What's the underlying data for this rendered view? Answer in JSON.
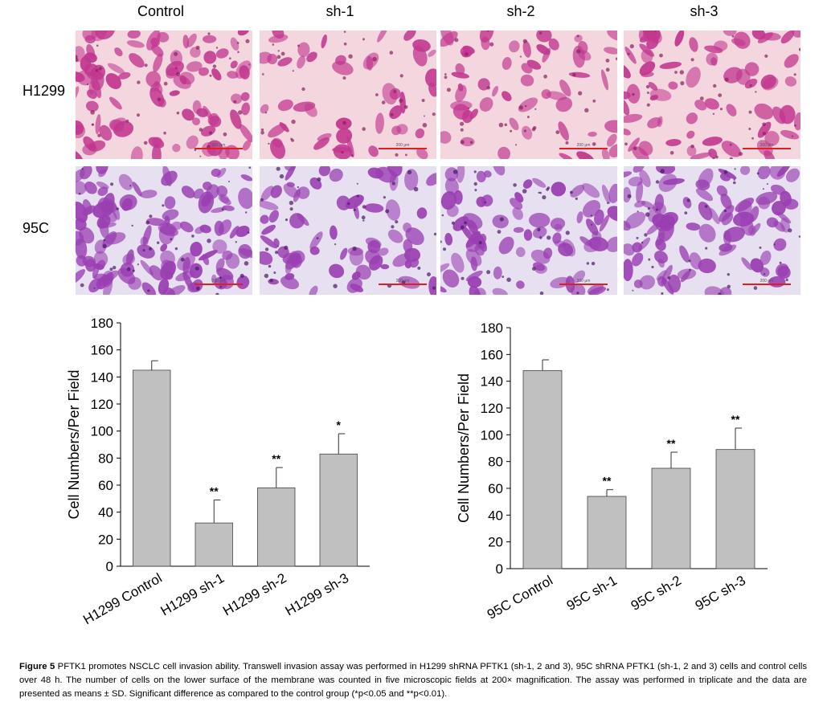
{
  "micrographs": {
    "columns": [
      "Control",
      "sh-1",
      "sh-2",
      "sh-3"
    ],
    "rows": [
      {
        "label": "H1299",
        "tone": "pink",
        "scale_label": "200 μm"
      },
      {
        "label": "95C",
        "tone": "purple",
        "scale_label": "200 μm"
      }
    ],
    "colors": {
      "pink_bg": "#f3d6de",
      "pink_cell": "#c2378f",
      "pink_dark": "#8a1f5e",
      "purple_bg": "#e6e0f0",
      "purple_cell": "#9a3fb2",
      "purple_dark": "#4a1866",
      "scale_bar": "#e0201e"
    }
  },
  "chart_data": [
    {
      "type": "bar",
      "categories": [
        "H1299 Control",
        "H1299 sh-1",
        "H1299 sh-2",
        "H1299 sh-3"
      ],
      "values": [
        145,
        32,
        58,
        83
      ],
      "errors": [
        7,
        17,
        15,
        15
      ],
      "significance": [
        "",
        "**",
        "**",
        "*"
      ],
      "ylabel": "Cell Numbers/Per Field",
      "ylim": [
        0,
        180
      ],
      "yticks": [
        0,
        20,
        40,
        60,
        80,
        100,
        120,
        140,
        160,
        180
      ],
      "bar_color": "#c0c0c0",
      "grid": false
    },
    {
      "type": "bar",
      "categories": [
        "95C Control",
        "95C sh-1",
        "95C sh-2",
        "95C sh-3"
      ],
      "values": [
        148,
        54,
        75,
        89
      ],
      "errors": [
        8,
        5,
        12,
        16
      ],
      "significance": [
        "",
        "**",
        "**",
        "**"
      ],
      "ylabel": "Cell Numbers/Per Field",
      "ylim": [
        0,
        180
      ],
      "yticks": [
        0,
        20,
        40,
        60,
        80,
        100,
        120,
        140,
        160,
        180
      ],
      "bar_color": "#c0c0c0",
      "grid": false
    }
  ],
  "caption": {
    "label": "Figure 5",
    "text": "PFTK1 promotes NSCLC cell invasion ability. Transwell invasion assay was performed in H1299 shRNA PFTK1 (sh-1, 2 and 3), 95C shRNA PFTK1 (sh-1, 2 and 3) cells and control cells over 48 h. The number of cells on the lower surface of the membrane was counted in five microscopic fields at 200× magnification. The assay was performed in triplicate and the data are presented as means ± SD. Significant difference as compared to the control group (*p<0.05 and **p<0.01)."
  }
}
